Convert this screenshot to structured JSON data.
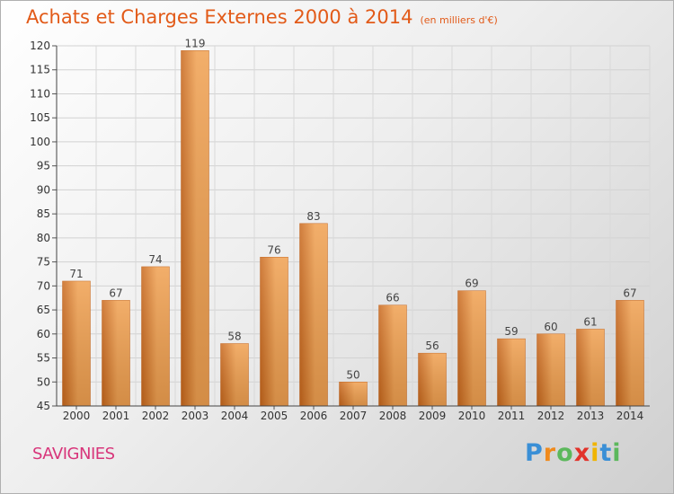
{
  "title": "Achats et Charges Externes 2000 à 2014",
  "subtitle": "(en milliers d'€)",
  "commune": "SAVIGNIES",
  "logo": {
    "letters": [
      "P",
      "r",
      "o",
      "x",
      "i",
      "t",
      "i"
    ],
    "colors": [
      "#3a8fd6",
      "#f08a1c",
      "#5cb85c",
      "#e2322a",
      "#f0b400",
      "#3a8fd6",
      "#5cb85c"
    ]
  },
  "chart_data": {
    "type": "bar",
    "categories": [
      "2000",
      "2001",
      "2002",
      "2003",
      "2004",
      "2005",
      "2006",
      "2007",
      "2008",
      "2009",
      "2010",
      "2011",
      "2012",
      "2013",
      "2014"
    ],
    "values": [
      71,
      67,
      74,
      119,
      58,
      76,
      83,
      50,
      66,
      56,
      69,
      59,
      60,
      61,
      67
    ],
    "ylim": [
      45,
      120
    ],
    "yticks": [
      45,
      50,
      55,
      60,
      65,
      70,
      75,
      80,
      85,
      90,
      95,
      100,
      105,
      110,
      115,
      120
    ],
    "grid": true,
    "bar_color": "#f0a050",
    "bar_color_dark": "#c8671c"
  }
}
